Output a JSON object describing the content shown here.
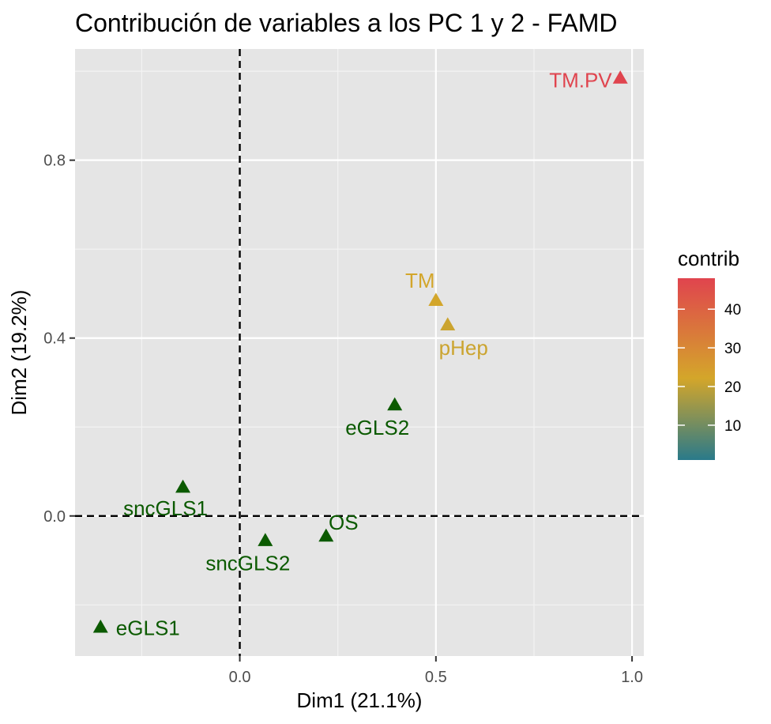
{
  "chart_data": {
    "type": "scatter",
    "title": "Contribución de variables a los PC 1 y 2 - FAMD",
    "xlabel": "Dim1 (21.1%)",
    "ylabel": "Dim2 (19.2%)",
    "xlim": [
      -0.42,
      1.03
    ],
    "ylim": [
      -0.315,
      1.05
    ],
    "x_ticks": [
      0.0,
      0.5,
      1.0
    ],
    "x_tick_labels": [
      "0.0",
      "0.5",
      "1.0"
    ],
    "y_ticks": [
      0.0,
      0.4,
      0.8
    ],
    "y_tick_labels": [
      "0.0",
      "0.4",
      "0.8"
    ],
    "grid": true,
    "reference_lines": [
      0,
      0
    ],
    "points": [
      {
        "label": "TM.PV",
        "x": 0.97,
        "y": 0.985,
        "contrib": 48
      },
      {
        "label": "TM",
        "x": 0.5,
        "y": 0.485,
        "contrib": 22
      },
      {
        "label": "pHep",
        "x": 0.53,
        "y": 0.43,
        "contrib": 21
      },
      {
        "label": "eGLS2",
        "x": 0.395,
        "y": 0.25,
        "contrib": 2
      },
      {
        "label": "sncGLS1",
        "x": -0.145,
        "y": 0.065,
        "contrib": 2
      },
      {
        "label": "OS",
        "x": 0.22,
        "y": -0.045,
        "contrib": 2
      },
      {
        "label": "sncGLS2",
        "x": 0.065,
        "y": -0.055,
        "contrib": 2
      },
      {
        "label": "eGLS1",
        "x": -0.355,
        "y": -0.25,
        "contrib": 2
      }
    ],
    "legend": {
      "title": "contrib",
      "position": "right",
      "ticks": [
        10,
        20,
        30,
        40
      ],
      "tick_labels": [
        "10",
        "20",
        "30",
        "40"
      ],
      "range": [
        1,
        48
      ]
    },
    "colors": {
      "low": "#2a7a8a",
      "mid": "#d4a62a",
      "high": "#e0444e",
      "points_low": "#0b5a00",
      "panel": "#e5e5e5",
      "grid": "#ffffff"
    }
  }
}
